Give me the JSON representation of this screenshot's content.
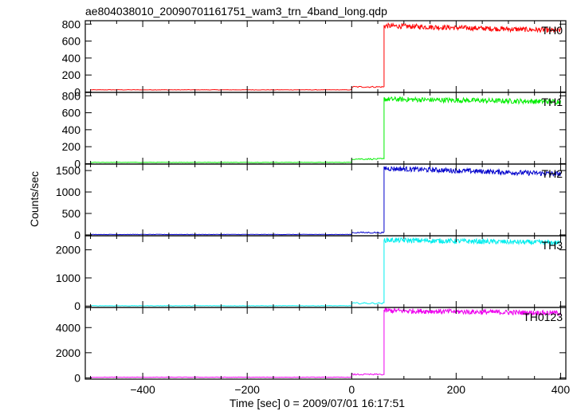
{
  "title": "ae804038010_20090701161751_wam3_trn_4band_long.qdp",
  "chart_data": {
    "type": "line",
    "xlabel": "Time [sec] 0 = 2009/07/01 16:17:51",
    "ylabel": "Counts/sec",
    "xlim": [
      -510,
      410
    ],
    "x_ticks": [
      -400,
      -200,
      0,
      200,
      400
    ],
    "x_tick_labels": [
      "−400",
      "−200",
      "0",
      "200",
      "400"
    ],
    "grid": false,
    "panels": [
      {
        "name": "TH0",
        "color": "#ff0000",
        "ylim": [
          -5,
          840
        ],
        "y_ticks": [
          0,
          200,
          400,
          600,
          800
        ],
        "segments": [
          {
            "x": [
              -500,
              0
            ],
            "y": 25
          },
          {
            "x": [
              0,
              62
            ],
            "y": 60
          },
          {
            "x": [
              62,
              400
            ],
            "y_start": 780,
            "y_end": 725
          }
        ]
      },
      {
        "name": "TH1",
        "color": "#00ee00",
        "ylim": [
          -5,
          840
        ],
        "y_ticks": [
          0,
          200,
          400,
          600,
          800
        ],
        "segments": [
          {
            "x": [
              -500,
              0
            ],
            "y": 15
          },
          {
            "x": [
              0,
              62
            ],
            "y": 55
          },
          {
            "x": [
              62,
              400
            ],
            "y_start": 760,
            "y_end": 730
          }
        ]
      },
      {
        "name": "TH2",
        "color": "#0000cc",
        "ylim": [
          -20,
          1650
        ],
        "y_ticks": [
          0,
          500,
          1000,
          1500
        ],
        "segments": [
          {
            "x": [
              -500,
              0
            ],
            "y": 10
          },
          {
            "x": [
              0,
              62
            ],
            "y": 55
          },
          {
            "x": [
              62,
              400
            ],
            "y_start": 1550,
            "y_end": 1420
          }
        ]
      },
      {
        "name": "TH3",
        "color": "#00eeee",
        "ylim": [
          -50,
          2500
        ],
        "y_ticks": [
          0,
          1000,
          2000
        ],
        "segments": [
          {
            "x": [
              -500,
              0
            ],
            "y": 10
          },
          {
            "x": [
              0,
              62
            ],
            "y": 100
          },
          {
            "x": [
              62,
              400
            ],
            "y_start": 2350,
            "y_end": 2250
          }
        ]
      },
      {
        "name": "TH0123",
        "color": "#ee00ee",
        "ylim": [
          -100,
          5600
        ],
        "y_ticks": [
          0,
          2000,
          4000
        ],
        "segments": [
          {
            "x": [
              -500,
              0
            ],
            "y": 50
          },
          {
            "x": [
              0,
              62
            ],
            "y": 270
          },
          {
            "x": [
              62,
              400
            ],
            "y_start": 5350,
            "y_end": 5150
          }
        ]
      }
    ]
  }
}
